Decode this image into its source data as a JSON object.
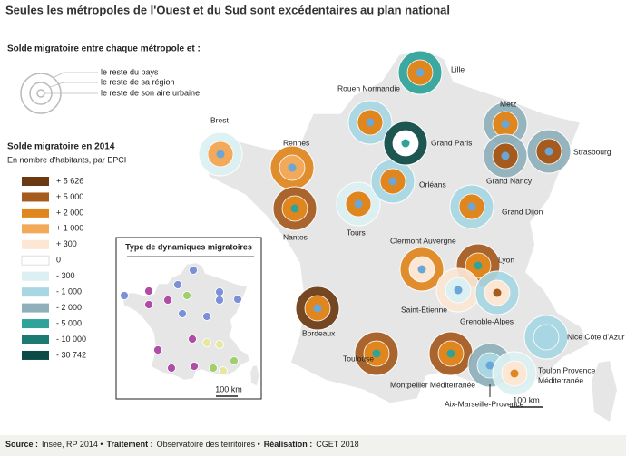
{
  "header": {
    "title": "Seules les métropoles de l'Ouest et du Sud sont excédentaires au plan national"
  },
  "ring_legend": {
    "title": "Solde migratoire entre chaque métropole et :",
    "labels": [
      "le reste du pays",
      "le reste de sa région",
      "le reste de son aire urbaine"
    ]
  },
  "class_legend": {
    "title": "Solde migratoire en 2014",
    "subtitle": "En nombre d'habitants, par EPCI",
    "labels": [
      "+ 5 626",
      "+ 5 000",
      "+ 2 000",
      "+ 1 000",
      "+ 300",
      "0",
      "- 300",
      "- 1 000",
      "- 2 000",
      "- 5 000",
      "- 10 000",
      "- 30 742"
    ],
    "colors": [
      "#6b3a12",
      "#a55a1e",
      "#e0861f",
      "#f2a95a",
      "#fbe7d3",
      "#ffffff",
      "#dcf0f3",
      "#a8d7e3",
      "#8fb0bb",
      "#2fa39a",
      "#1b7b73",
      "#0c4a45"
    ]
  },
  "inset": {
    "title": "Type de dynamiques migratoires",
    "scale": "100 km"
  },
  "map": {
    "scale": "100 km",
    "cities": [
      {
        "label": [
          "Lille"
        ],
        "rings": [
          "#2fa39a",
          "#e0861f",
          "#6aa7d8"
        ]
      },
      {
        "label": [
          "Rouen Normandie"
        ],
        "rings": [
          "#a8d7e3",
          "#e0861f",
          "#6aa7d8"
        ]
      },
      {
        "label": [
          "Brest"
        ],
        "rings": [
          "#dcf0f3",
          "#f2a95a",
          "#6aa7d8"
        ]
      },
      {
        "label": [
          "Rennes"
        ],
        "rings": [
          "#e0861f",
          "#f2a95a",
          "#6aa7d8"
        ]
      },
      {
        "label": [
          "Nantes"
        ],
        "rings": [
          "#a55a1e",
          "#e0861f",
          "#2fa39a"
        ]
      },
      {
        "label": [
          "Tours"
        ],
        "rings": [
          "#dcf0f3",
          "#e0861f",
          "#6aa7d8"
        ]
      },
      {
        "label": [
          "Orléans"
        ],
        "rings": [
          "#a8d7e3",
          "#e0861f",
          "#6aa7d8"
        ]
      },
      {
        "label": [
          "Grand Paris"
        ],
        "rings": [
          "#0c4a45",
          "#ffffff",
          "#2fa39a"
        ]
      },
      {
        "label": [
          "Metz"
        ],
        "rings": [
          "#8fb0bb",
          "#e0861f",
          "#6aa7d8"
        ]
      },
      {
        "label": [
          "Grand Nancy"
        ],
        "rings": [
          "#8fb0bb",
          "#a55a1e",
          "#6aa7d8"
        ]
      },
      {
        "label": [
          "Strasbourg"
        ],
        "rings": [
          "#8fb0bb",
          "#a55a1e",
          "#6aa7d8"
        ]
      },
      {
        "label": [
          "Grand Dijon"
        ],
        "rings": [
          "#a8d7e3",
          "#e0861f",
          "#6aa7d8"
        ]
      },
      {
        "label": [
          "Clermont Auvergne"
        ],
        "rings": [
          "#e0861f",
          "#fbe7d3",
          "#6aa7d8"
        ]
      },
      {
        "label": [
          "Lyon"
        ],
        "rings": [
          "#a55a1e",
          "#e0861f",
          "#2fa39a"
        ]
      },
      {
        "label": [
          "Saint-Étienne"
        ],
        "rings": [
          "#fbe7d3",
          "#dcf0f3",
          "#6aa7d8"
        ]
      },
      {
        "label": [
          "Grenoble-Alpes"
        ],
        "rings": [
          "#a8d7e3",
          "#fbe7d3",
          "#a55a1e"
        ]
      },
      {
        "label": [
          "Bordeaux"
        ],
        "rings": [
          "#6b3a12",
          "#e0861f",
          "#6aa7d8"
        ]
      },
      {
        "label": [
          "Toulouse"
        ],
        "rings": [
          "#a55a1e",
          "#e0861f",
          "#2fa39a"
        ]
      },
      {
        "label": [
          "Montpellier Méditerranée"
        ],
        "rings": [
          "#a55a1e",
          "#e0861f",
          "#2fa39a"
        ]
      },
      {
        "label": [
          "Aix-Marseille-Provence"
        ],
        "rings": [
          "#8fb0bb",
          "#a8d7e3",
          "#6aa7d8"
        ]
      },
      {
        "label": [
          "Toulon Provence",
          "Méditerranée"
        ],
        "rings": [
          "#dcf0f3",
          "#fbe7d3",
          "#e0861f"
        ]
      },
      {
        "label": [
          "Nice Côte d'Azur"
        ],
        "rings": [
          "#a8d7e3",
          "#a8d7e3",
          "#a8d7e3"
        ]
      }
    ]
  },
  "footer": {
    "parts": [
      {
        "label": "Source :",
        "text": "Insee, RP 2014 •"
      },
      {
        "label": "Traitement :",
        "text": "Observatoire des territoires •"
      },
      {
        "label": "Réalisation :",
        "text": "CGET 2018"
      }
    ]
  }
}
